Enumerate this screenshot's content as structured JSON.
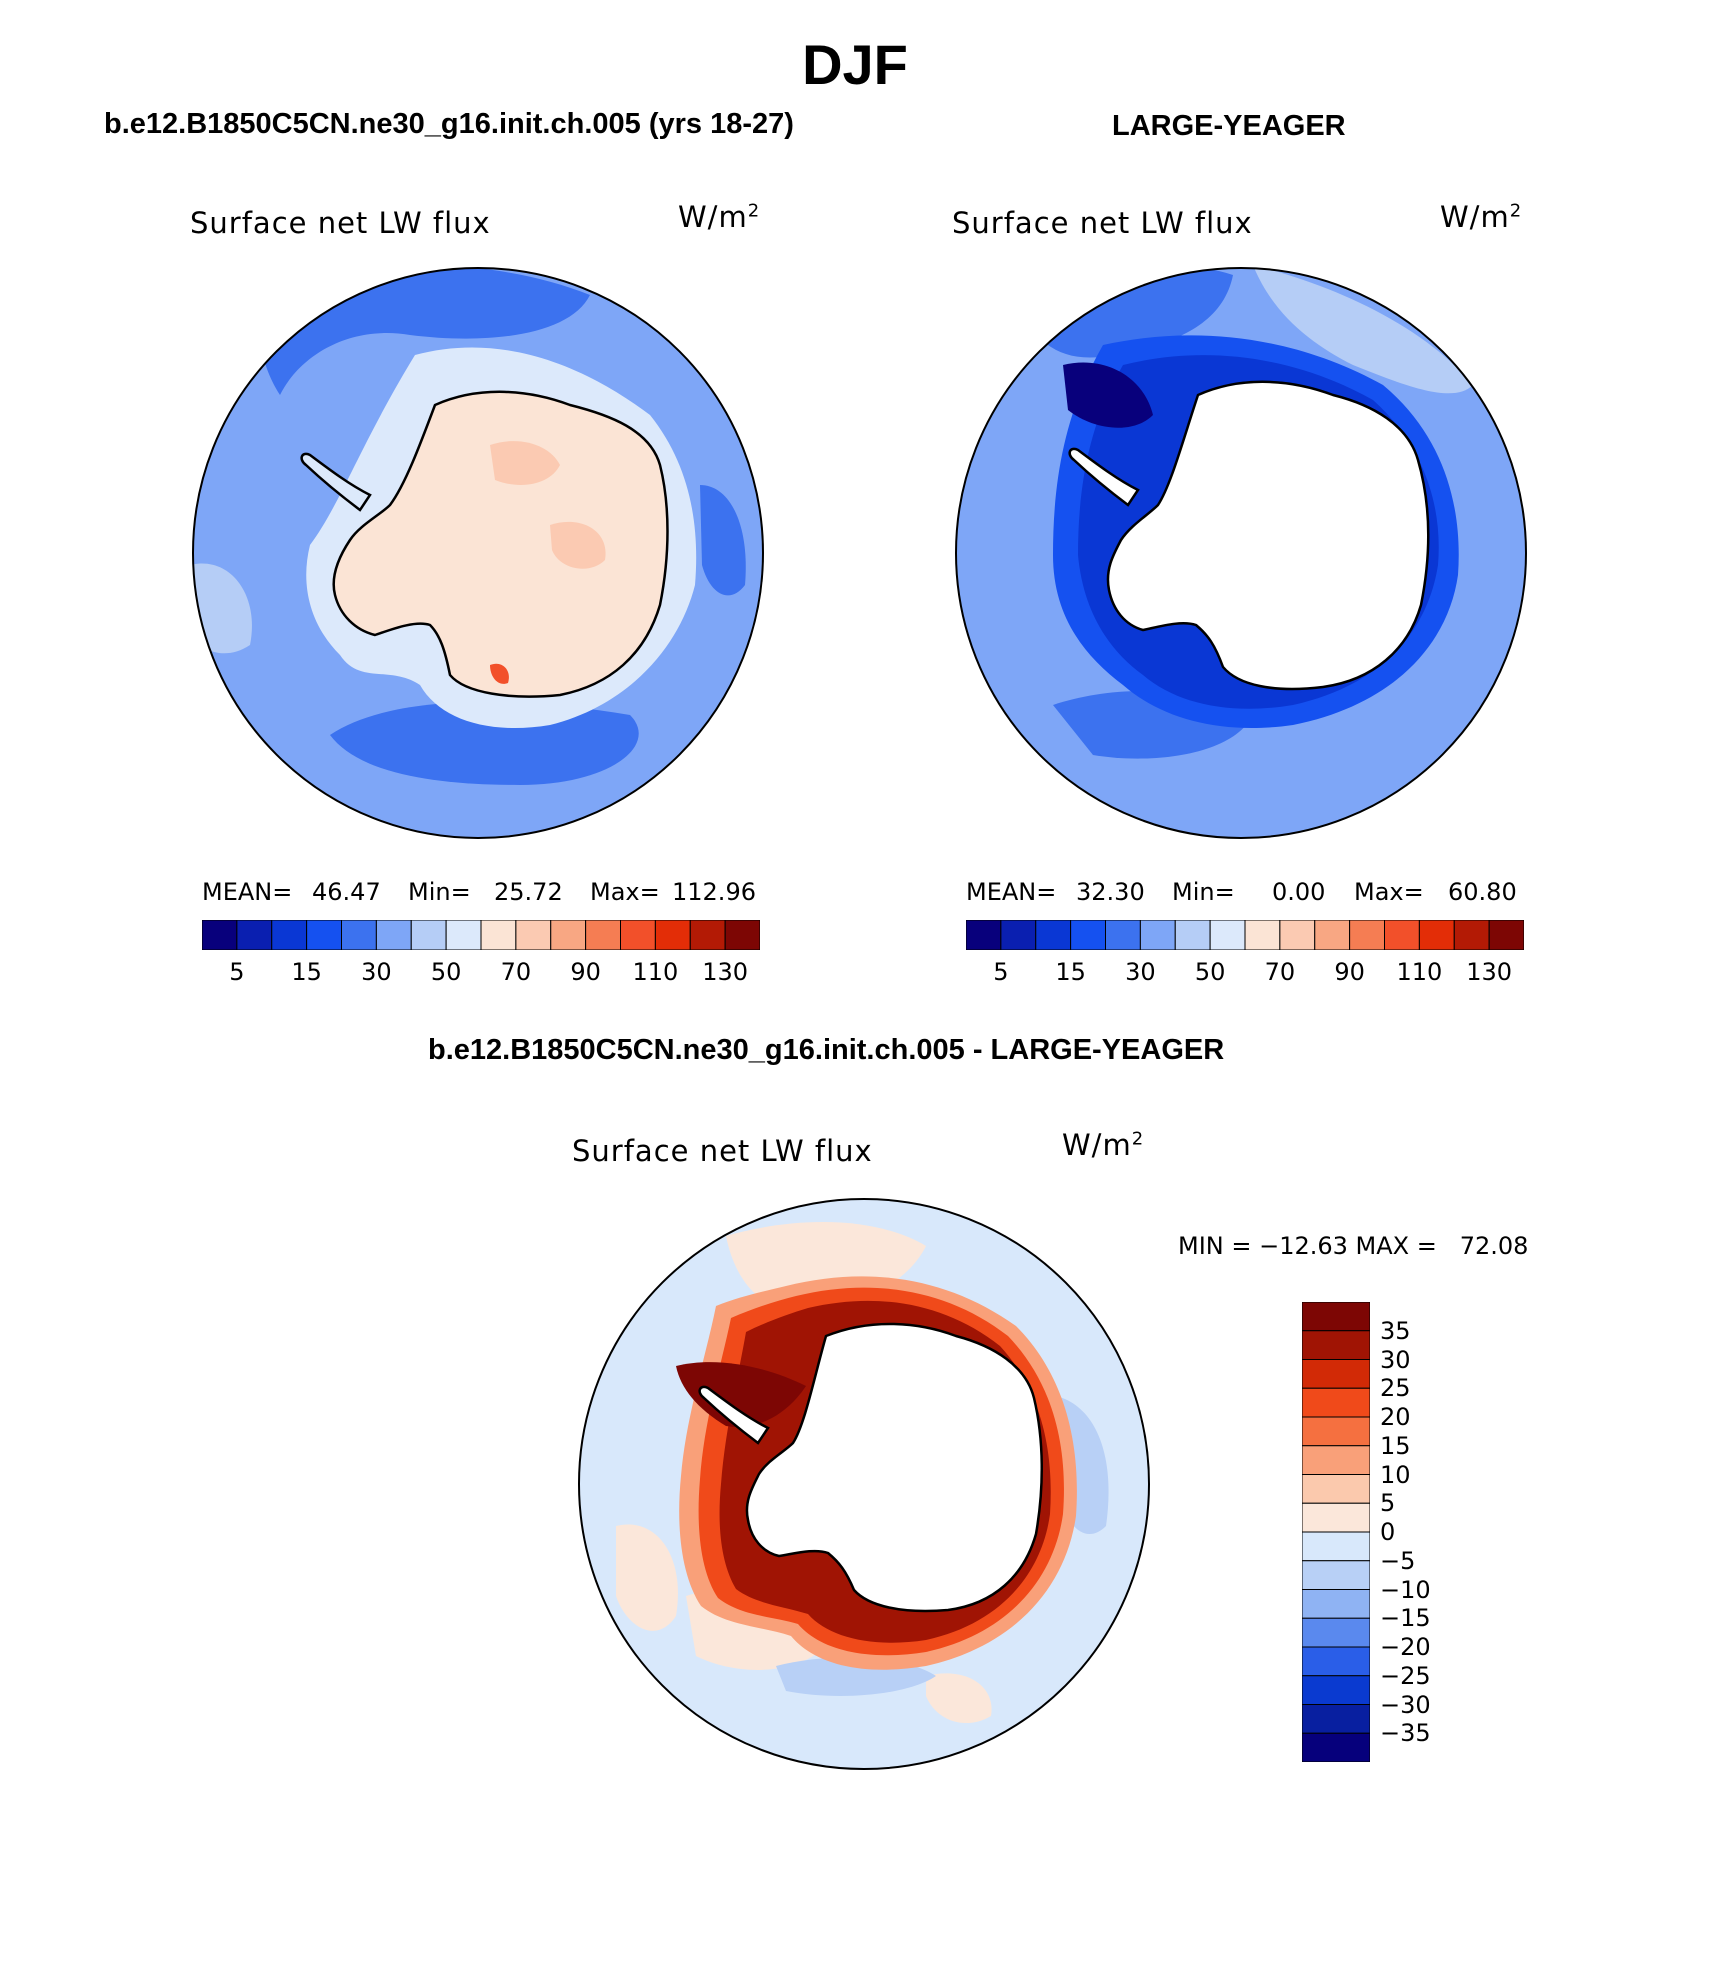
{
  "page": {
    "title": "DJF",
    "panel1_header": "b.e12.B1850C5CN.ne30_g16.init.ch.005 (yrs 18-27)",
    "panel2_header": "LARGE-YEAGER",
    "panel3_header": "b.e12.B1850C5CN.ne30_g16.init.ch.005 - LARGE-YEAGER"
  },
  "chart_data": [
    {
      "type": "heatmap",
      "projection": "south polar stereographic",
      "variable": "Surface net LW flux",
      "units": "W/m",
      "units_superscript": "2",
      "stats": {
        "mean_label": "MEAN=",
        "mean": "46.47",
        "min_label": "Min=",
        "min": "25.72",
        "max_label": "Max=",
        "max": "112.96"
      },
      "colorbar": {
        "orientation": "horizontal",
        "tick_labels": [
          "5",
          "15",
          "30",
          "50",
          "70",
          "90",
          "110",
          "130"
        ],
        "colors": [
          "#08007c",
          "#0a1fb0",
          "#0a37d4",
          "#1551f0",
          "#3c72ef",
          "#7ea6f7",
          "#b5cdf6",
          "#dce9fb",
          "#fbe4d5",
          "#fbcab2",
          "#f8a783",
          "#f57d53",
          "#f2502a",
          "#e32d07",
          "#b31a05",
          "#7d0604"
        ]
      }
    },
    {
      "type": "heatmap",
      "projection": "south polar stereographic",
      "variable": "Surface net LW flux",
      "units": "W/m",
      "units_superscript": "2",
      "stats": {
        "mean_label": "MEAN=",
        "mean": "32.30",
        "min_label": "Min=",
        "min": "0.00",
        "max_label": "Max=",
        "max": "60.80"
      },
      "colorbar": {
        "orientation": "horizontal",
        "tick_labels": [
          "5",
          "15",
          "30",
          "50",
          "70",
          "90",
          "110",
          "130"
        ],
        "colors": [
          "#08007c",
          "#0a1fb0",
          "#0a37d4",
          "#1551f0",
          "#3c72ef",
          "#7ea6f7",
          "#b5cdf6",
          "#dce9fb",
          "#fbe4d5",
          "#fbcab2",
          "#f8a783",
          "#f57d53",
          "#f2502a",
          "#e32d07",
          "#b31a05",
          "#7d0604"
        ]
      }
    },
    {
      "type": "heatmap",
      "projection": "south polar stereographic",
      "variable": "Surface net LW flux",
      "units": "W/m",
      "units_superscript": "2",
      "stats": {
        "text": "MIN = −12.63 MAX =   72.08"
      },
      "colorbar": {
        "orientation": "vertical",
        "tick_labels": [
          "35",
          "30",
          "25",
          "20",
          "15",
          "10",
          "5",
          "0",
          "−5",
          "−10",
          "−15",
          "−20",
          "−25",
          "−30",
          "−35"
        ],
        "colors": [
          "#7d0604",
          "#a01404",
          "#d22a06",
          "#f04a1a",
          "#f57040",
          "#f9a079",
          "#fbc9ad",
          "#fbe7da",
          "#d8e8fb",
          "#b8d0f6",
          "#8fb3f3",
          "#5a89ee",
          "#2a5ee8",
          "#0a3ad0",
          "#081fa0",
          "#06007c"
        ]
      }
    }
  ]
}
